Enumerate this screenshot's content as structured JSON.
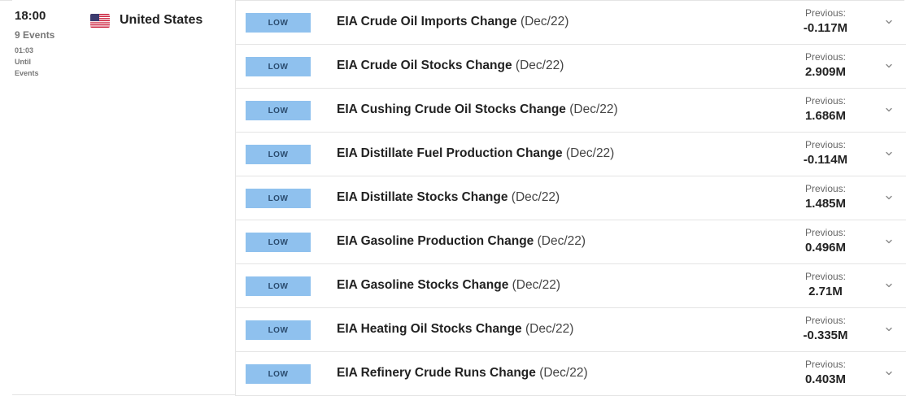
{
  "group": {
    "time": "18:00",
    "events_count": "9 Events",
    "countdown": "01:03",
    "until_label": "Until",
    "events_label": "Events",
    "country": "United States"
  },
  "colors": {
    "impact_low_bg": "#8fc1ee",
    "impact_low_text": "#2b4c6f",
    "divider": "#e4e4e4"
  },
  "events": [
    {
      "impact": "LOW",
      "title": "EIA Crude Oil Imports Change",
      "period": "(Dec/22)",
      "previous_label": "Previous:",
      "previous": "-0.117M"
    },
    {
      "impact": "LOW",
      "title": "EIA Crude Oil Stocks Change",
      "period": "(Dec/22)",
      "previous_label": "Previous:",
      "previous": "2.909M"
    },
    {
      "impact": "LOW",
      "title": "EIA Cushing Crude Oil Stocks Change",
      "period": "(Dec/22)",
      "previous_label": "Previous:",
      "previous": "1.686M"
    },
    {
      "impact": "LOW",
      "title": "EIA Distillate Fuel Production Change",
      "period": "(Dec/22)",
      "previous_label": "Previous:",
      "previous": "-0.114M"
    },
    {
      "impact": "LOW",
      "title": "EIA Distillate Stocks Change",
      "period": "(Dec/22)",
      "previous_label": "Previous:",
      "previous": "1.485M"
    },
    {
      "impact": "LOW",
      "title": "EIA Gasoline Production Change",
      "period": "(Dec/22)",
      "previous_label": "Previous:",
      "previous": "0.496M"
    },
    {
      "impact": "LOW",
      "title": "EIA Gasoline Stocks Change",
      "period": "(Dec/22)",
      "previous_label": "Previous:",
      "previous": "2.71M"
    },
    {
      "impact": "LOW",
      "title": "EIA Heating Oil Stocks Change",
      "period": "(Dec/22)",
      "previous_label": "Previous:",
      "previous": "-0.335M"
    },
    {
      "impact": "LOW",
      "title": "EIA Refinery Crude Runs Change",
      "period": "(Dec/22)",
      "previous_label": "Previous:",
      "previous": "0.403M"
    }
  ]
}
